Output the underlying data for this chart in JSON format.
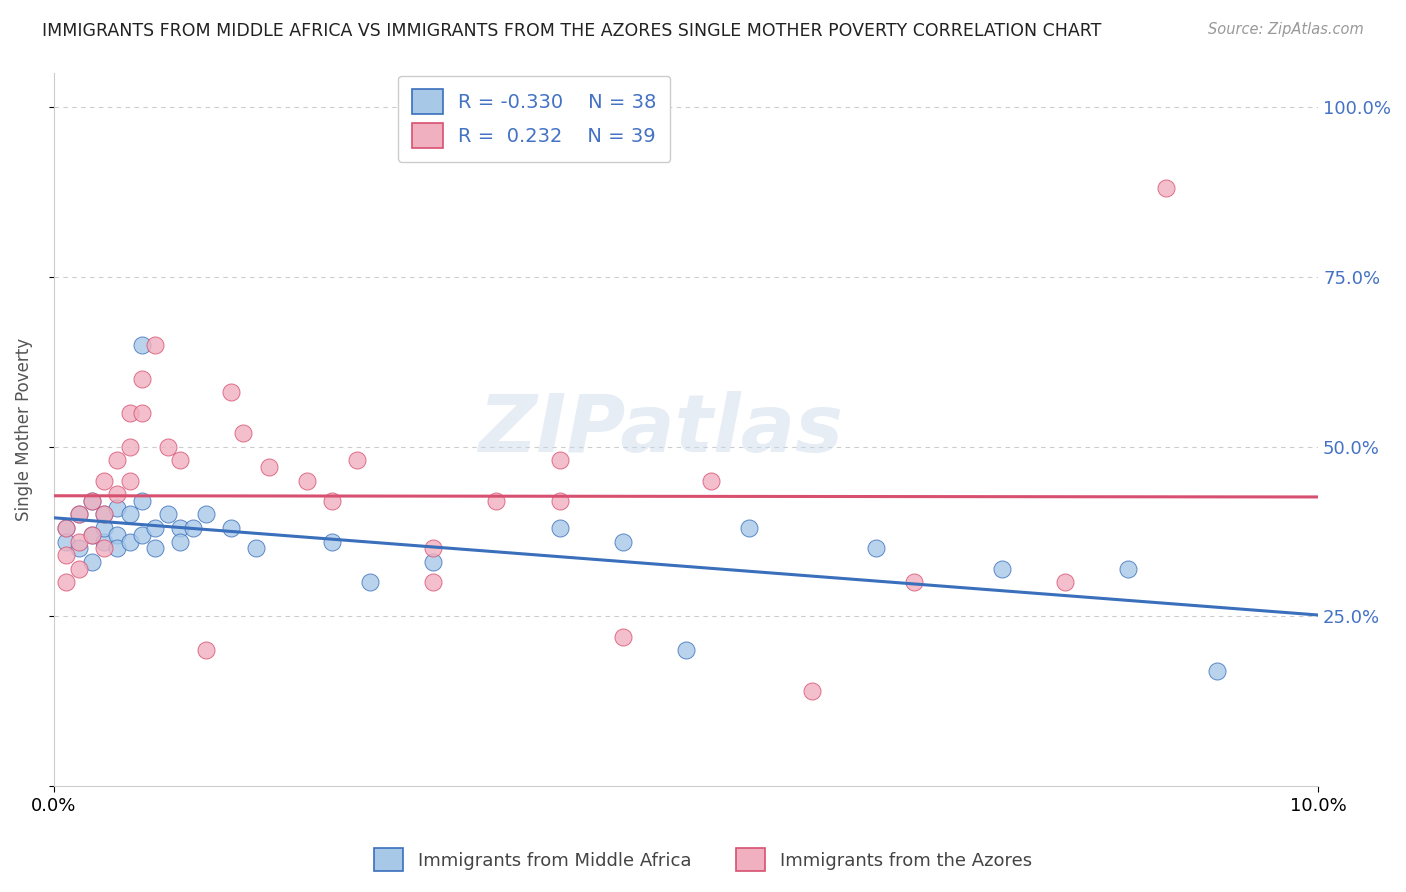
{
  "title": "IMMIGRANTS FROM MIDDLE AFRICA VS IMMIGRANTS FROM THE AZORES SINGLE MOTHER POVERTY CORRELATION CHART",
  "source": "Source: ZipAtlas.com",
  "ylabel": "Single Mother Poverty",
  "xlim": [
    0.0,
    0.1
  ],
  "ylim": [
    0.0,
    1.05
  ],
  "watermark": "ZIPatlas",
  "legend_r_blue": "-0.330",
  "legend_n_blue": "38",
  "legend_r_pink": "0.232",
  "legend_n_pink": "39",
  "blue_color": "#a8c8e8",
  "pink_color": "#f0b0c0",
  "line_blue": "#3a6fbc",
  "line_pink": "#d85070",
  "blue_scatter_x": [
    0.001,
    0.001,
    0.002,
    0.002,
    0.003,
    0.003,
    0.003,
    0.004,
    0.004,
    0.004,
    0.005,
    0.005,
    0.005,
    0.006,
    0.006,
    0.007,
    0.007,
    0.007,
    0.008,
    0.008,
    0.009,
    0.01,
    0.01,
    0.011,
    0.012,
    0.014,
    0.016,
    0.022,
    0.025,
    0.03,
    0.04,
    0.045,
    0.05,
    0.055,
    0.065,
    0.075,
    0.085,
    0.092
  ],
  "blue_scatter_y": [
    0.38,
    0.36,
    0.4,
    0.35,
    0.42,
    0.37,
    0.33,
    0.4,
    0.36,
    0.38,
    0.41,
    0.37,
    0.35,
    0.4,
    0.36,
    0.42,
    0.37,
    0.65,
    0.38,
    0.35,
    0.4,
    0.38,
    0.36,
    0.38,
    0.4,
    0.38,
    0.35,
    0.36,
    0.3,
    0.33,
    0.38,
    0.36,
    0.2,
    0.38,
    0.35,
    0.32,
    0.32,
    0.17
  ],
  "pink_scatter_x": [
    0.001,
    0.001,
    0.001,
    0.002,
    0.002,
    0.002,
    0.003,
    0.003,
    0.004,
    0.004,
    0.004,
    0.005,
    0.005,
    0.006,
    0.006,
    0.006,
    0.007,
    0.007,
    0.008,
    0.009,
    0.01,
    0.012,
    0.014,
    0.015,
    0.017,
    0.02,
    0.022,
    0.024,
    0.03,
    0.03,
    0.035,
    0.04,
    0.04,
    0.045,
    0.052,
    0.06,
    0.068,
    0.08,
    0.088
  ],
  "pink_scatter_y": [
    0.38,
    0.34,
    0.3,
    0.4,
    0.36,
    0.32,
    0.42,
    0.37,
    0.45,
    0.4,
    0.35,
    0.48,
    0.43,
    0.55,
    0.5,
    0.45,
    0.6,
    0.55,
    0.65,
    0.5,
    0.48,
    0.2,
    0.58,
    0.52,
    0.47,
    0.45,
    0.42,
    0.48,
    0.35,
    0.3,
    0.42,
    0.48,
    0.42,
    0.22,
    0.45,
    0.14,
    0.3,
    0.3,
    0.88
  ],
  "background_color": "#ffffff",
  "grid_color": "#cccccc"
}
